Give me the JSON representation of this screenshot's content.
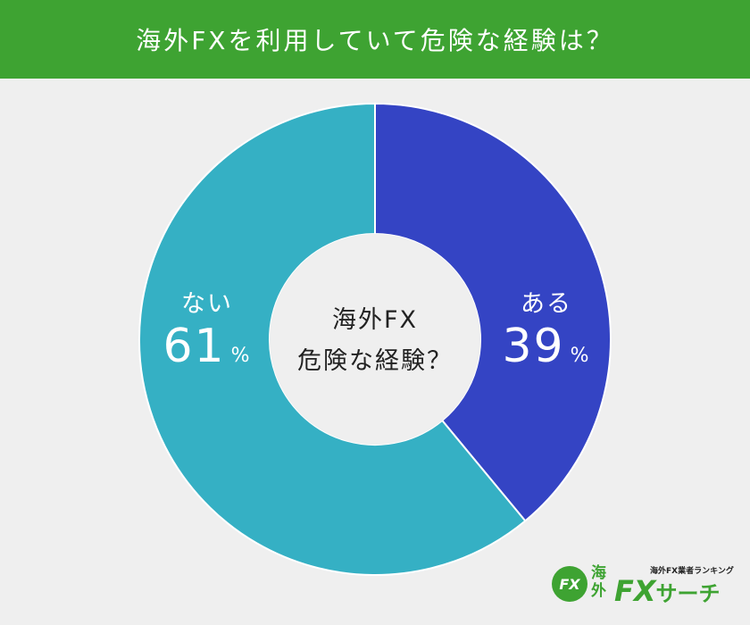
{
  "header": {
    "title": "海外FXを利用していて危険な経験は？"
  },
  "center": {
    "line1": "海外FX",
    "line2": "危険な経験？"
  },
  "labels": {
    "yes": {
      "name": "ある",
      "value": "39",
      "unit": "%"
    },
    "no": {
      "name": "ない",
      "value": "61",
      "unit": "%"
    }
  },
  "chart_data": {
    "type": "pie",
    "title": "海外FXを利用していて危険な経験は？",
    "categories": [
      "ある",
      "ない"
    ],
    "values": [
      39,
      61
    ],
    "colors": [
      "#3444c4",
      "#35b0c4"
    ],
    "donut_center_text": [
      "海外FX",
      "危険な経験？"
    ],
    "legend": "none"
  },
  "logo": {
    "badge": "FX",
    "kaigai": "海外",
    "fx": "FX",
    "search": "サーチ",
    "subtitle": "海外FX業者ランキング"
  },
  "colors": {
    "header_bg": "#3ea332",
    "background": "#efefef"
  }
}
